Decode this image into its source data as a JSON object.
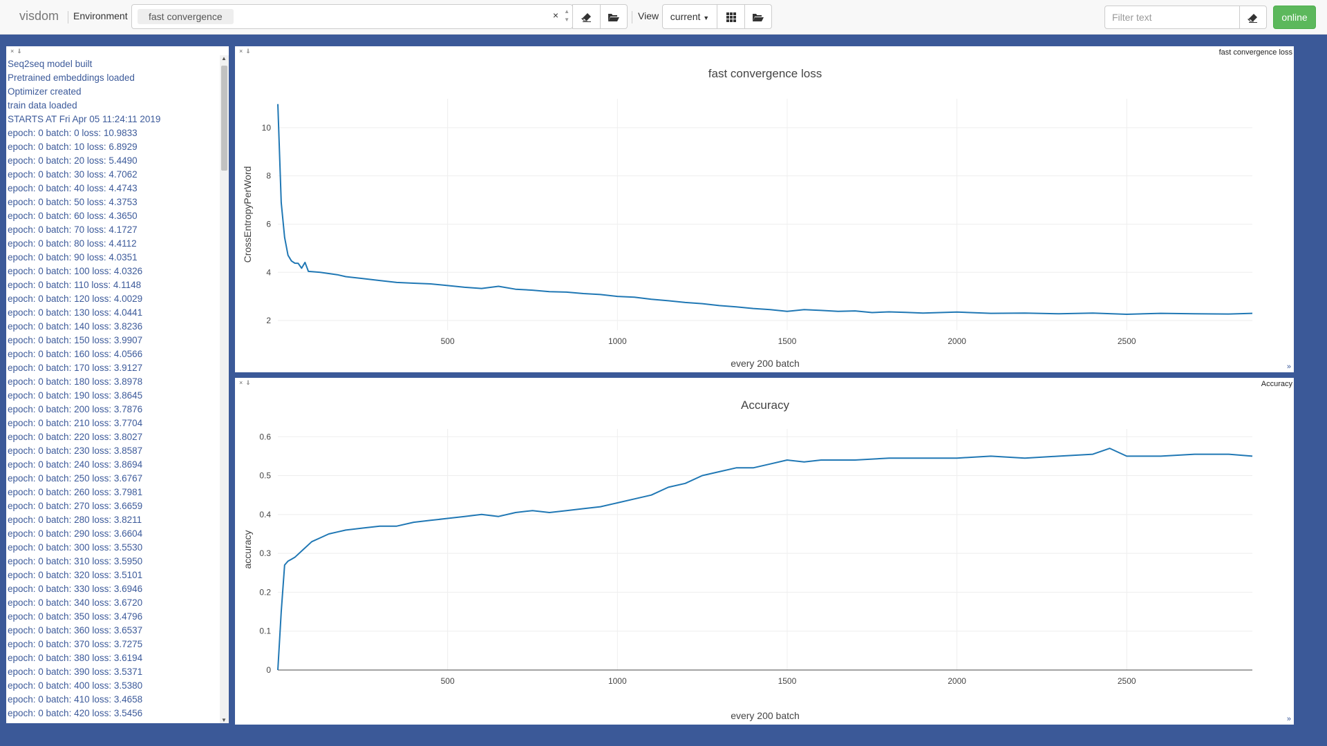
{
  "navbar": {
    "brand": "visdom",
    "environment_label": "Environment",
    "environment_chip": "fast convergence",
    "clear_symbol": "×",
    "view_label": "View",
    "view_select": "current",
    "filter_placeholder": "Filter text",
    "online_label": "online"
  },
  "icons": {
    "eraser": "eraser-icon",
    "folder": "folder-open-icon",
    "grid": "grid-icon"
  },
  "text_pane": {
    "lines": [
      "Seq2seq model built",
      "Pretrained embeddings loaded",
      "Optimizer created",
      "train data loaded",
      "STARTS AT Fri Apr 05 11:24:11 2019",
      "epoch: 0 batch: 0 loss: 10.9833",
      "epoch: 0 batch: 10 loss: 6.8929",
      "epoch: 0 batch: 20 loss: 5.4490",
      "epoch: 0 batch: 30 loss: 4.7062",
      "epoch: 0 batch: 40 loss: 4.4743",
      "epoch: 0 batch: 50 loss: 4.3753",
      "epoch: 0 batch: 60 loss: 4.3650",
      "epoch: 0 batch: 70 loss: 4.1727",
      "epoch: 0 batch: 80 loss: 4.4112",
      "epoch: 0 batch: 90 loss: 4.0351",
      "epoch: 0 batch: 100 loss: 4.0326",
      "epoch: 0 batch: 110 loss: 4.1148",
      "epoch: 0 batch: 120 loss: 4.0029",
      "epoch: 0 batch: 130 loss: 4.0441",
      "epoch: 0 batch: 140 loss: 3.8236",
      "epoch: 0 batch: 150 loss: 3.9907",
      "epoch: 0 batch: 160 loss: 4.0566",
      "epoch: 0 batch: 170 loss: 3.9127",
      "epoch: 0 batch: 180 loss: 3.8978",
      "epoch: 0 batch: 190 loss: 3.8645",
      "epoch: 0 batch: 200 loss: 3.7876",
      "epoch: 0 batch: 210 loss: 3.7704",
      "epoch: 0 batch: 220 loss: 3.8027",
      "epoch: 0 batch: 230 loss: 3.8587",
      "epoch: 0 batch: 240 loss: 3.8694",
      "epoch: 0 batch: 250 loss: 3.6767",
      "epoch: 0 batch: 260 loss: 3.7981",
      "epoch: 0 batch: 270 loss: 3.6659",
      "epoch: 0 batch: 280 loss: 3.8211",
      "epoch: 0 batch: 290 loss: 3.6604",
      "epoch: 0 batch: 300 loss: 3.5530",
      "epoch: 0 batch: 310 loss: 3.5950",
      "epoch: 0 batch: 320 loss: 3.5101",
      "epoch: 0 batch: 330 loss: 3.6946",
      "epoch: 0 batch: 340 loss: 3.6720",
      "epoch: 0 batch: 350 loss: 3.4796",
      "epoch: 0 batch: 360 loss: 3.6537",
      "epoch: 0 batch: 370 loss: 3.7275",
      "epoch: 0 batch: 380 loss: 3.6194",
      "epoch: 0 batch: 390 loss: 3.5371",
      "epoch: 0 batch: 400 loss: 3.5380",
      "epoch: 0 batch: 410 loss: 3.4658",
      "epoch: 0 batch: 420 loss: 3.5456"
    ]
  },
  "chart_data": [
    {
      "type": "line",
      "pane_title": "fast convergence loss",
      "title": "fast convergence loss",
      "xlabel": "every 200 batch",
      "ylabel": "CrossEntropyPerWord",
      "xlim": [
        0,
        2870
      ],
      "ylim": [
        1.6,
        11.2
      ],
      "xticks": [
        500,
        1000,
        1500,
        2000,
        2500
      ],
      "yticks": [
        2,
        4,
        6,
        8,
        10
      ],
      "grid": true,
      "color": "#1f77b4",
      "x": [
        0,
        10,
        20,
        30,
        40,
        50,
        60,
        70,
        80,
        90,
        100,
        125,
        150,
        175,
        200,
        250,
        300,
        350,
        400,
        450,
        500,
        550,
        600,
        650,
        700,
        750,
        800,
        850,
        900,
        950,
        1000,
        1050,
        1100,
        1150,
        1200,
        1250,
        1300,
        1350,
        1400,
        1450,
        1500,
        1550,
        1600,
        1650,
        1700,
        1750,
        1800,
        1850,
        1900,
        1950,
        2000,
        2100,
        2200,
        2300,
        2400,
        2500,
        2600,
        2700,
        2800,
        2870
      ],
      "y": [
        10.98,
        6.89,
        5.45,
        4.71,
        4.47,
        4.38,
        4.37,
        4.17,
        4.41,
        4.04,
        4.03,
        4.0,
        3.95,
        3.9,
        3.82,
        3.74,
        3.66,
        3.58,
        3.55,
        3.52,
        3.45,
        3.38,
        3.33,
        3.42,
        3.3,
        3.26,
        3.2,
        3.18,
        3.12,
        3.08,
        3.0,
        2.97,
        2.88,
        2.82,
        2.75,
        2.7,
        2.62,
        2.57,
        2.5,
        2.45,
        2.38,
        2.45,
        2.42,
        2.38,
        2.4,
        2.33,
        2.36,
        2.34,
        2.31,
        2.33,
        2.35,
        2.3,
        2.31,
        2.28,
        2.31,
        2.26,
        2.3,
        2.28,
        2.27,
        2.3
      ]
    },
    {
      "type": "line",
      "pane_title": "Accuracy",
      "title": "Accuracy",
      "xlabel": "every 200 batch",
      "ylabel": "accuracy",
      "xlim": [
        0,
        2870
      ],
      "ylim": [
        0,
        0.62
      ],
      "xticks": [
        500,
        1000,
        1500,
        2000,
        2500
      ],
      "yticks": [
        0,
        0.1,
        0.2,
        0.3,
        0.4,
        0.5,
        0.6
      ],
      "grid": true,
      "color": "#1f77b4",
      "x": [
        0,
        10,
        20,
        30,
        40,
        50,
        75,
        100,
        125,
        150,
        175,
        200,
        250,
        300,
        350,
        400,
        450,
        500,
        550,
        600,
        650,
        700,
        750,
        800,
        850,
        900,
        950,
        1000,
        1050,
        1100,
        1150,
        1200,
        1250,
        1300,
        1350,
        1400,
        1450,
        1500,
        1550,
        1600,
        1700,
        1800,
        1900,
        2000,
        2100,
        2200,
        2300,
        2400,
        2450,
        2500,
        2600,
        2700,
        2800,
        2870
      ],
      "y": [
        0.0,
        0.15,
        0.27,
        0.28,
        0.285,
        0.29,
        0.31,
        0.33,
        0.34,
        0.35,
        0.355,
        0.36,
        0.365,
        0.37,
        0.37,
        0.38,
        0.385,
        0.39,
        0.395,
        0.4,
        0.395,
        0.405,
        0.41,
        0.405,
        0.41,
        0.415,
        0.42,
        0.43,
        0.44,
        0.45,
        0.47,
        0.48,
        0.5,
        0.51,
        0.52,
        0.52,
        0.53,
        0.54,
        0.535,
        0.54,
        0.54,
        0.545,
        0.545,
        0.545,
        0.55,
        0.545,
        0.55,
        0.555,
        0.57,
        0.55,
        0.55,
        0.555,
        0.555,
        0.55
      ]
    }
  ]
}
